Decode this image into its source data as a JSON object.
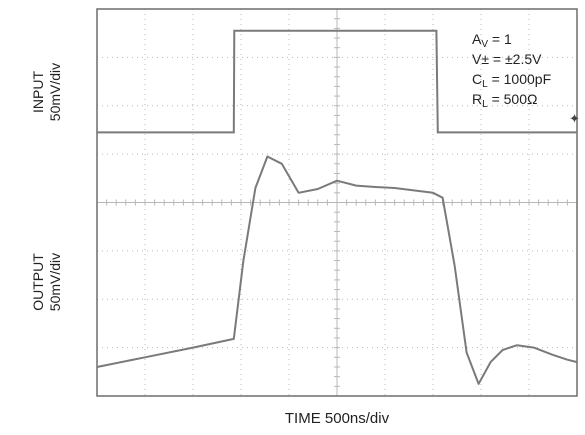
{
  "chart_data": {
    "type": "line",
    "title": "",
    "xlabel": "TIME 500ns/div",
    "x_scale": "500ns/div",
    "grid": true,
    "grid_divisions": {
      "x": 10,
      "y": 8
    },
    "channels": [
      {
        "label_line1": "INPUT",
        "label_line2": "50mV/div",
        "y_scale": "50mV/div",
        "x": [
          0,
          2.85,
          2.86,
          3.3,
          7.07,
          7.1,
          10
        ],
        "y": [
          1.45,
          1.45,
          3.55,
          3.55,
          3.55,
          1.45,
          1.45
        ]
      },
      {
        "label_line1": "OUTPUT",
        "label_line2": "50mV/div",
        "y_scale": "50mV/div",
        "x": [
          0,
          1.0,
          2.0,
          2.85,
          3.05,
          3.3,
          3.55,
          3.85,
          4.2,
          4.6,
          5.0,
          5.4,
          5.8,
          6.2,
          6.6,
          7.0,
          7.2,
          7.45,
          7.7,
          7.95,
          8.2,
          8.45,
          8.75,
          9.1,
          9.5,
          9.8,
          10
        ],
        "y": [
          -3.4,
          -3.2,
          -3.0,
          -2.82,
          -1.2,
          0.3,
          0.95,
          0.8,
          0.2,
          0.28,
          0.45,
          0.35,
          0.32,
          0.3,
          0.25,
          0.2,
          0.1,
          -1.3,
          -3.1,
          -3.75,
          -3.3,
          -3.05,
          -2.95,
          -3.0,
          -3.15,
          -3.25,
          -3.3
        ]
      }
    ],
    "annotation_lines": [
      {
        "main": "A",
        "sub": "V",
        "rest": " = 1"
      },
      {
        "main": "V± = ±2.5V",
        "sub": "",
        "rest": ""
      },
      {
        "main": "C",
        "sub": "L",
        "rest": " = 1000pF"
      },
      {
        "main": "R",
        "sub": "L",
        "rest": " = 500Ω"
      }
    ]
  },
  "colors": {
    "trace": "#7a7a7a",
    "frame": "#6d6d6d",
    "grid_dot": "#b8b8b8"
  }
}
